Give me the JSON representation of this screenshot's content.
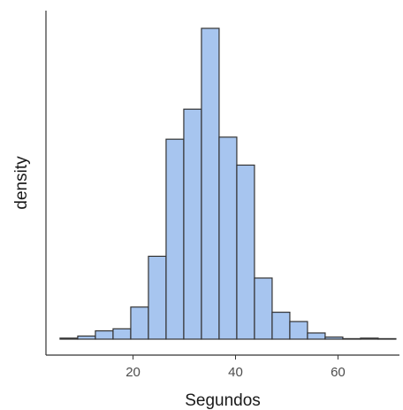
{
  "chart_data": {
    "type": "bar",
    "subtype": "histogram",
    "title": "",
    "xlabel": "Segundos",
    "ylabel": "density",
    "xlim": [
      3,
      72
    ],
    "ylim": [
      0,
      0.1
    ],
    "x_ticks": [
      20,
      40,
      60
    ],
    "y_ticks": [],
    "grid": false,
    "legend": "none",
    "bin_width": 3.45,
    "bins_start": 5.75,
    "counts_relative": [
      0.001,
      0.003,
      0.008,
      0.01,
      0.031,
      0.08,
      0.193,
      0.222,
      0.3,
      0.195,
      0.168,
      0.059,
      0.026,
      0.017,
      0.006,
      0.002,
      0.0005,
      0.001,
      0.0005
    ],
    "colors": {
      "fill": "#a7c5ef",
      "stroke": "#333333"
    }
  }
}
